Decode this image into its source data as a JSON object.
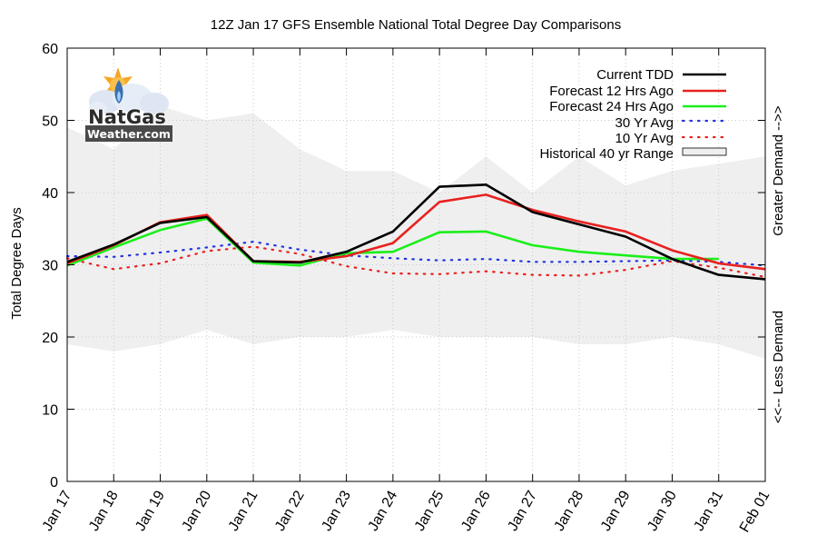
{
  "chart_data": {
    "type": "line",
    "title": "12Z Jan 17 GFS Ensemble National Total Degree Day Comparisons",
    "xlabel": "",
    "ylabel": "Total Degree Days",
    "right_label_top": "Greater Demand -->>",
    "right_label_bottom": "<<-- Less Demand",
    "ylim": [
      0,
      60
    ],
    "yticks": [
      0,
      10,
      20,
      30,
      40,
      50,
      60
    ],
    "categories": [
      "Jan 17",
      "Jan 18",
      "Jan 19",
      "Jan 20",
      "Jan 21",
      "Jan 22",
      "Jan 23",
      "Jan 24",
      "Jan 25",
      "Jan 26",
      "Jan 27",
      "Jan 28",
      "Jan 29",
      "Jan 30",
      "Jan 31",
      "Feb 01"
    ],
    "grid": true,
    "legend_position": "top-right",
    "series": [
      {
        "name": "Current TDD",
        "color": "#000000",
        "style": "solid",
        "values": [
          30.4,
          32.8,
          35.8,
          36.6,
          30.5,
          30.3,
          31.8,
          34.6,
          40.8,
          41.1,
          37.3,
          35.6,
          33.9,
          30.8,
          28.6,
          28.0
        ]
      },
      {
        "name": "Forecast 12 Hrs Ago",
        "color": "#e8211f",
        "style": "solid",
        "values": [
          30.2,
          32.7,
          35.9,
          36.9,
          30.5,
          30.4,
          31.2,
          33.0,
          38.7,
          39.7,
          37.6,
          36.0,
          34.6,
          32.0,
          30.2,
          29.4
        ]
      },
      {
        "name": "Forecast 24 Hrs Ago",
        "color": "#1aef1a",
        "style": "solid",
        "values": [
          29.9,
          32.4,
          34.8,
          36.4,
          30.3,
          29.9,
          31.6,
          31.8,
          34.5,
          34.6,
          32.7,
          31.8,
          31.3,
          30.8,
          30.8,
          null
        ]
      },
      {
        "name": "30 Yr Avg",
        "color": "#2233e0",
        "style": "dotted",
        "values": [
          31.2,
          31.1,
          31.7,
          32.4,
          33.2,
          32.1,
          31.3,
          30.9,
          30.6,
          30.8,
          30.4,
          30.4,
          30.5,
          30.6,
          30.4,
          29.9
        ]
      },
      {
        "name": "10 Yr Avg",
        "color": "#e8211f",
        "style": "dotted",
        "values": [
          30.9,
          29.4,
          30.2,
          31.9,
          32.5,
          31.5,
          29.8,
          28.8,
          28.7,
          29.1,
          28.6,
          28.5,
          29.3,
          30.5,
          29.6,
          28.3
        ]
      }
    ],
    "historical_range": {
      "name": "Historical 40 yr Range",
      "color": "#efefef",
      "upper": [
        49,
        46,
        52,
        50,
        51,
        46,
        43,
        43,
        40,
        45,
        40,
        45,
        41,
        43,
        44,
        45
      ],
      "lower": [
        19,
        18,
        19,
        21,
        19,
        20,
        20,
        21,
        20,
        20,
        20,
        19,
        19,
        20,
        19,
        17
      ]
    }
  },
  "logo": {
    "line1": "NatGas",
    "line2": "Weather.com"
  },
  "colors": {
    "grid": "#c8c8c8",
    "frame": "#000000",
    "logo_sun": "#f5a623",
    "logo_blue": "#3b6fb0"
  }
}
